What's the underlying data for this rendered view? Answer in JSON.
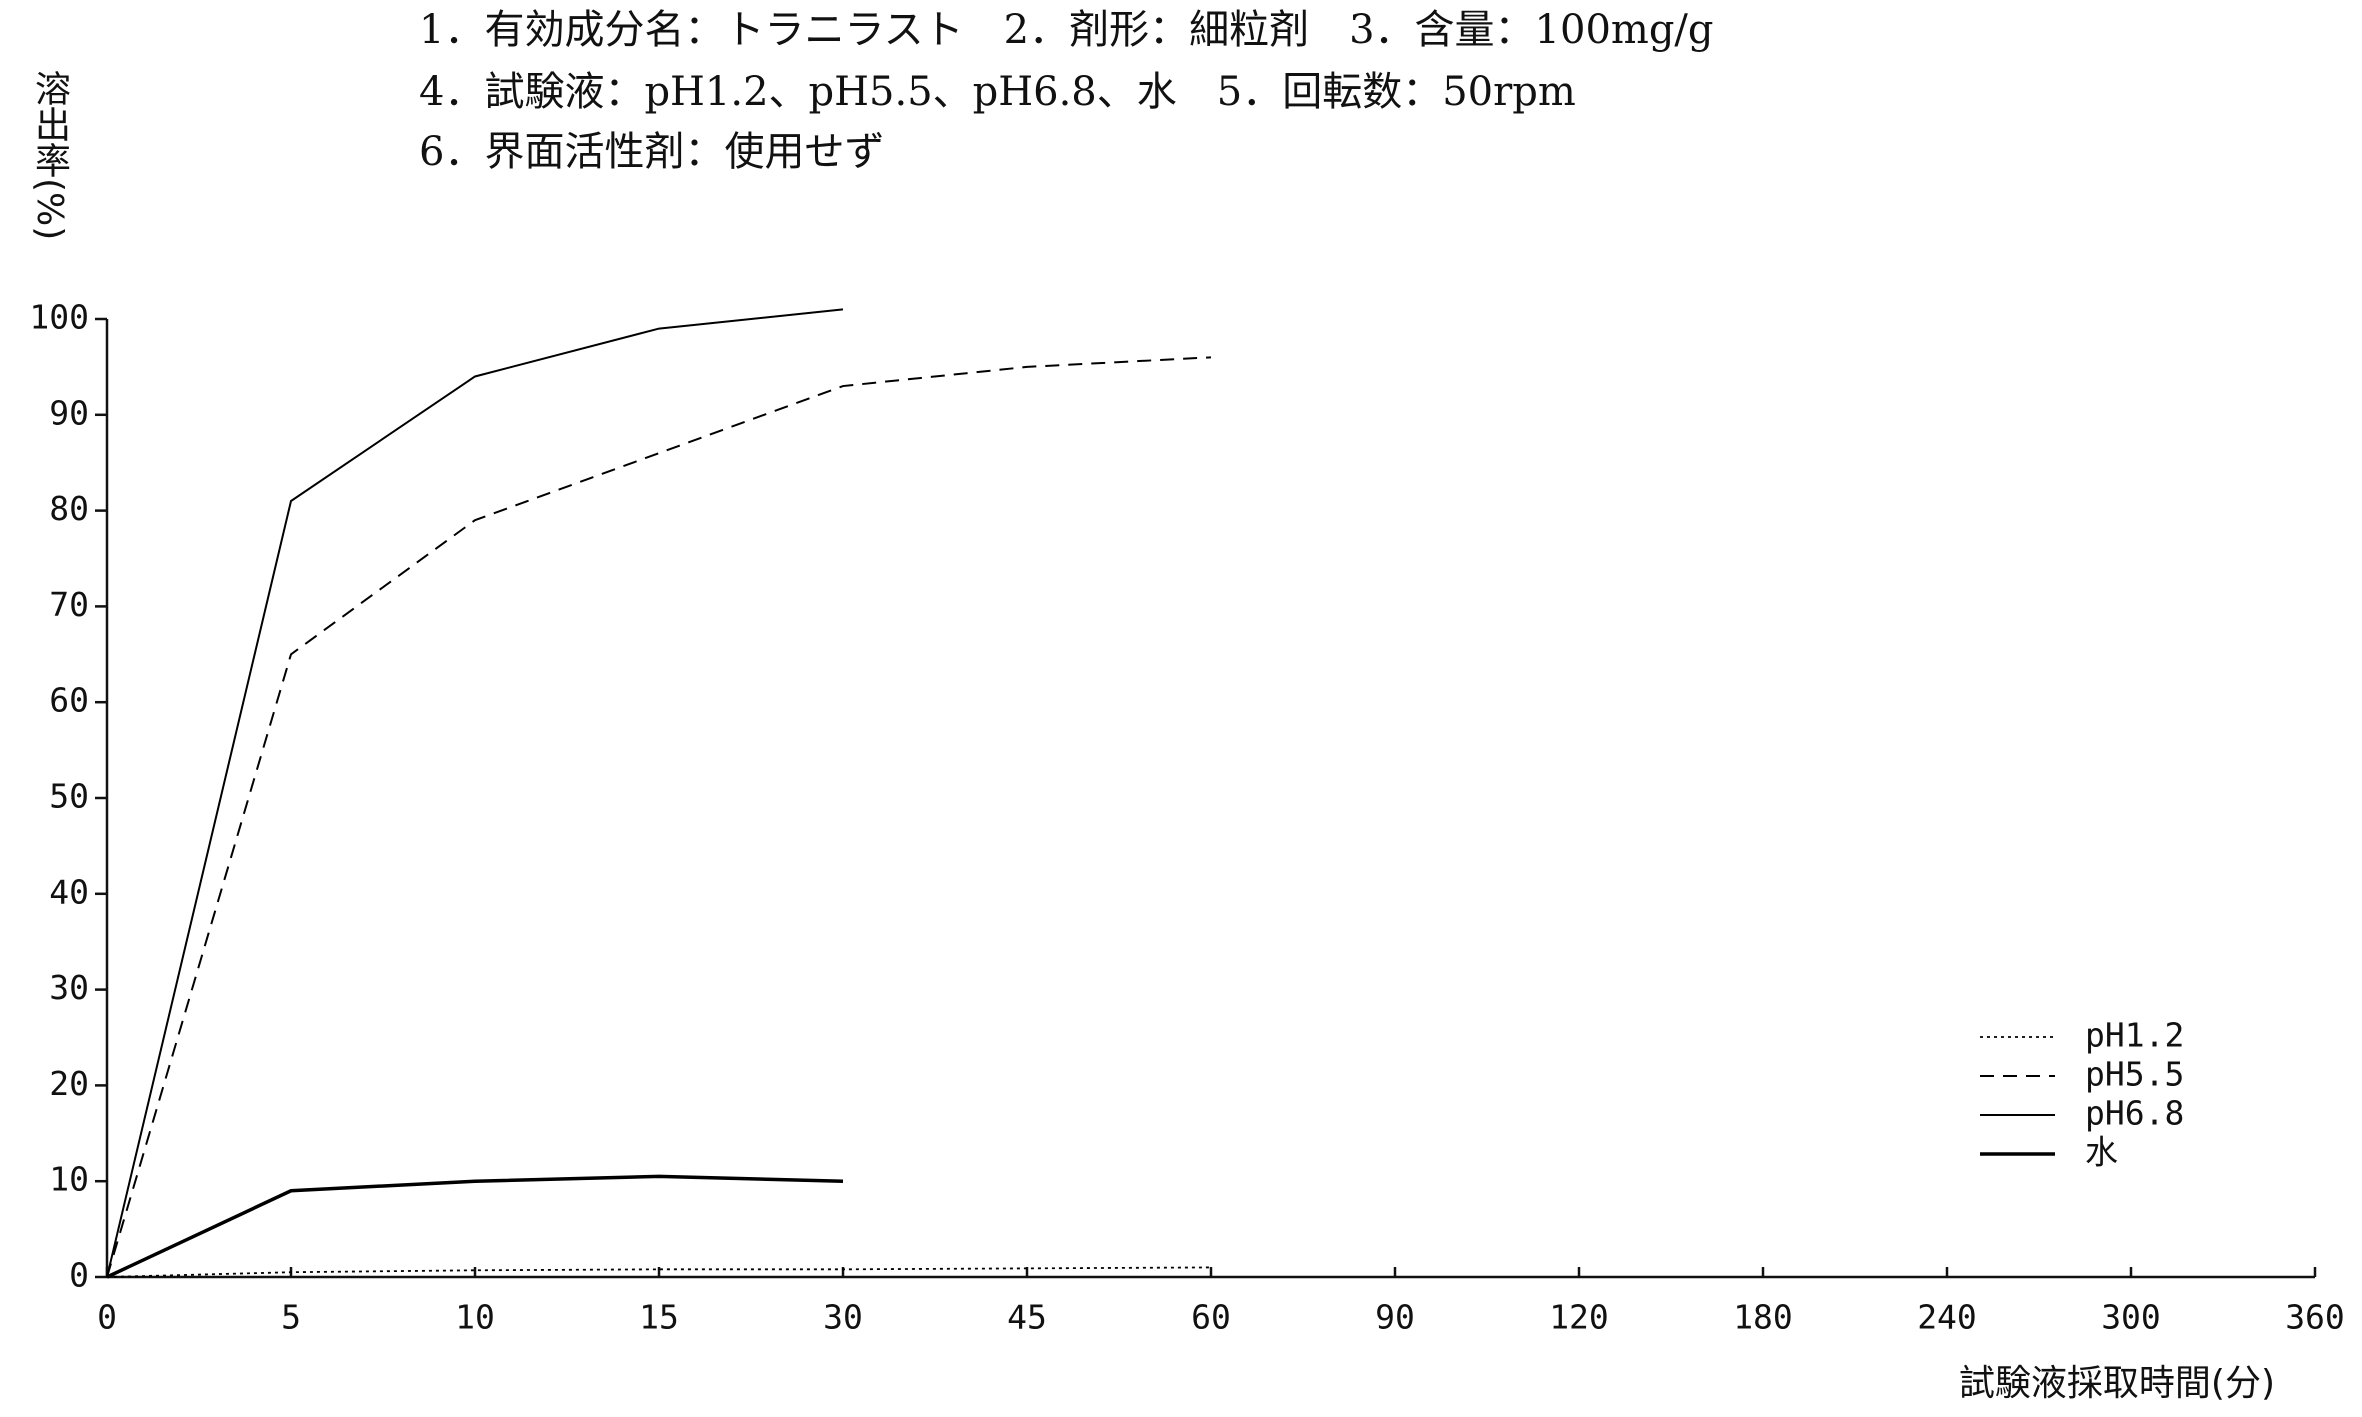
{
  "chart_data": {
    "type": "line",
    "notes": [
      "1．有効成分名：トラニラスト　2．剤形：細粒剤　3．含量：100mg/g",
      "4．試験液：pH1.2、pH5.5、pH6.8、水　5．回転数：50rpm",
      "6．界面活性剤：使用せず"
    ],
    "y_label": "溶出率(%)",
    "x_label": "試験液採取時間(分)",
    "categories": [
      0,
      5,
      10,
      15,
      30,
      45,
      60,
      90,
      120,
      180,
      240,
      300,
      360
    ],
    "series": [
      {
        "name": "pH1.2",
        "color": "#000000",
        "dash": "dotted",
        "values": [
          0,
          0.5,
          0.7,
          0.8,
          0.8,
          0.9,
          1,
          null,
          null,
          null,
          null,
          null,
          null
        ]
      },
      {
        "name": "pH5.5",
        "color": "#000000",
        "dash": "dashed",
        "values": [
          0,
          65,
          79,
          86,
          93,
          95,
          96,
          null,
          null,
          null,
          null,
          null,
          null
        ]
      },
      {
        "name": "pH6.8",
        "color": "#000000",
        "dash": "solid",
        "values": [
          0,
          81,
          94,
          99,
          101,
          null,
          null,
          null,
          null,
          null,
          null,
          null,
          null
        ]
      },
      {
        "name": "水",
        "color": "#000000",
        "dash": "solid-bold",
        "values": [
          0,
          9,
          10,
          10.5,
          10,
          null,
          null,
          null,
          null,
          null,
          null,
          null,
          null
        ]
      }
    ],
    "ylim": [
      0,
      100
    ],
    "yticks": [
      0,
      10,
      20,
      30,
      40,
      50,
      60,
      70,
      80,
      90,
      100
    ],
    "legend": "lower right",
    "grid": false
  }
}
